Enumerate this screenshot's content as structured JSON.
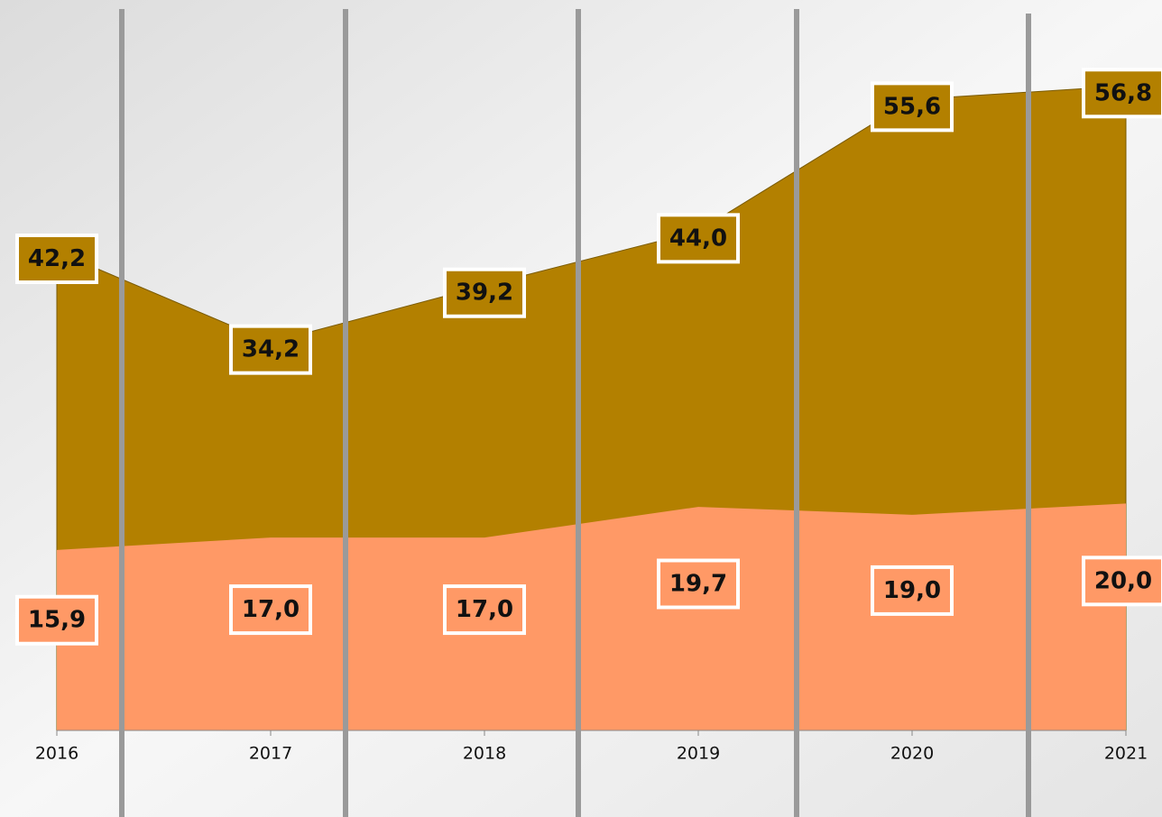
{
  "chart_data": {
    "type": "area",
    "categories": [
      "2016",
      "2017",
      "2018",
      "2019",
      "2020",
      "2021"
    ],
    "series": [
      {
        "color": "#b38000",
        "values": [
          42.2,
          34.2,
          39.2,
          44.0,
          55.6,
          56.8
        ],
        "value_labels": [
          "42,2",
          "34,2",
          "39,2",
          "44,0",
          "55,6",
          "56,8"
        ]
      },
      {
        "color": "#ff9966",
        "values": [
          15.9,
          17.0,
          17.0,
          19.7,
          19.0,
          20.0
        ],
        "value_labels": [
          "15,9",
          "17,0",
          "17,0",
          "19,7",
          "19,0",
          "20,0"
        ]
      }
    ],
    "ylim": [
      0,
      60
    ]
  }
}
